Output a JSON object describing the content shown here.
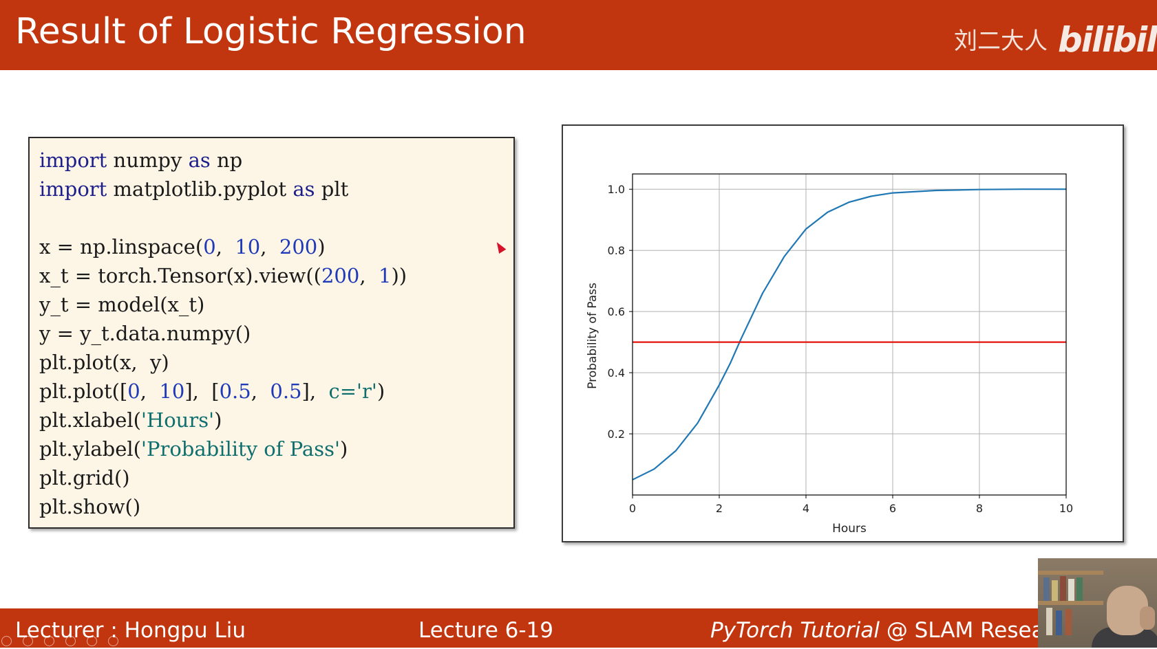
{
  "header": {
    "title": "Result of Logistic Regression",
    "author_mark": "刘二大人",
    "platform_logo": "bilibili",
    "background": "#c2360f"
  },
  "code": {
    "lines": [
      [
        {
          "t": "import",
          "k": "kw"
        },
        {
          "t": " numpy ",
          "k": "plain"
        },
        {
          "t": "as",
          "k": "kw"
        },
        {
          "t": " np",
          "k": "plain"
        }
      ],
      [
        {
          "t": "import",
          "k": "kw"
        },
        {
          "t": " matplotlib.pyplot ",
          "k": "plain"
        },
        {
          "t": "as",
          "k": "kw"
        },
        {
          "t": " plt",
          "k": "plain"
        }
      ],
      [],
      [
        {
          "t": "x = np.linspace(",
          "k": "plain"
        },
        {
          "t": "0",
          "k": "num"
        },
        {
          "t": ",  ",
          "k": "plain"
        },
        {
          "t": "10",
          "k": "num"
        },
        {
          "t": ",  ",
          "k": "plain"
        },
        {
          "t": "200",
          "k": "num"
        },
        {
          "t": ")",
          "k": "plain"
        }
      ],
      [
        {
          "t": "x_t = torch.Tensor(x).view((",
          "k": "plain"
        },
        {
          "t": "200",
          "k": "num"
        },
        {
          "t": ",  ",
          "k": "plain"
        },
        {
          "t": "1",
          "k": "num"
        },
        {
          "t": "))",
          "k": "plain"
        }
      ],
      [
        {
          "t": "y_t = model(x_t)",
          "k": "plain"
        }
      ],
      [
        {
          "t": "y = y_t.data.numpy()",
          "k": "plain"
        }
      ],
      [
        {
          "t": "plt.plot(x,  y)",
          "k": "plain"
        }
      ],
      [
        {
          "t": "plt.plot([",
          "k": "plain"
        },
        {
          "t": "0",
          "k": "num"
        },
        {
          "t": ",  ",
          "k": "plain"
        },
        {
          "t": "10",
          "k": "num"
        },
        {
          "t": "],  [",
          "k": "plain"
        },
        {
          "t": "0.5",
          "k": "num"
        },
        {
          "t": ",  ",
          "k": "plain"
        },
        {
          "t": "0.5",
          "k": "num"
        },
        {
          "t": "],  ",
          "k": "plain"
        },
        {
          "t": "c='r'",
          "k": "str"
        },
        {
          "t": ")",
          "k": "plain"
        }
      ],
      [
        {
          "t": "plt.xlabel(",
          "k": "plain"
        },
        {
          "t": "'Hours'",
          "k": "str"
        },
        {
          "t": ")",
          "k": "plain"
        }
      ],
      [
        {
          "t": "plt.ylabel(",
          "k": "plain"
        },
        {
          "t": "'Probability of Pass'",
          "k": "str"
        },
        {
          "t": ")",
          "k": "plain"
        }
      ],
      [
        {
          "t": "plt.grid()",
          "k": "plain"
        }
      ],
      [
        {
          "t": "plt.show()",
          "k": "plain"
        }
      ]
    ]
  },
  "chart_data": {
    "type": "line",
    "title": "",
    "xlabel": "Hours",
    "ylabel": "Probability of Pass",
    "xlim": [
      0,
      10
    ],
    "ylim": [
      0.0,
      1.05
    ],
    "xticks": [
      "0",
      "2",
      "4",
      "6",
      "8",
      "10"
    ],
    "yticks": [
      "0.2",
      "0.4",
      "0.6",
      "0.8",
      "1.0"
    ],
    "grid": true,
    "series": [
      {
        "color": "#1f77b4",
        "x": [
          0,
          0.5,
          1,
          1.5,
          2,
          2.25,
          2.5,
          2.75,
          3,
          3.5,
          4,
          4.5,
          5,
          5.5,
          6,
          7,
          8,
          9,
          10
        ],
        "y": [
          0.05,
          0.085,
          0.145,
          0.235,
          0.36,
          0.43,
          0.51,
          0.585,
          0.66,
          0.78,
          0.87,
          0.925,
          0.958,
          0.977,
          0.988,
          0.996,
          0.999,
          1.0,
          1.0
        ]
      },
      {
        "color": "#e3120b",
        "x": [
          0,
          10
        ],
        "y": [
          0.5,
          0.5
        ]
      }
    ]
  },
  "footer": {
    "lecturer": "Lecturer : Hongpu Liu",
    "lecture": "Lecture 6-19",
    "course_italic": "PyTorch Tutorial",
    "course_rest": " @ SLAM Resea"
  }
}
